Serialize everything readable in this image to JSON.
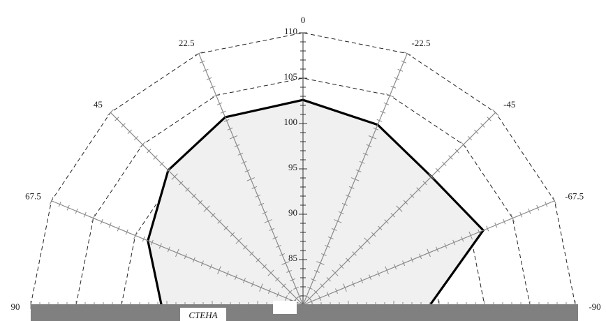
{
  "chart_data": {
    "type": "polar",
    "title": "",
    "angle_unit": "deg",
    "angle_range": [
      -90,
      90
    ],
    "angle_ticks": [
      0,
      -22.5,
      -45,
      -67.5,
      -90,
      22.5,
      45,
      67.5,
      90
    ],
    "radial_range": [
      80,
      110
    ],
    "radial_ticks": [
      80,
      85,
      90,
      95,
      100,
      105,
      110
    ],
    "grid": true,
    "wall_label": "СТЕНА",
    "series": [
      {
        "angles": [
          90,
          67.5,
          45,
          22.5,
          0,
          -22.5,
          -45,
          -67.5,
          -90
        ],
        "values": [
          95.6,
          98.5,
          101.0,
          102.4,
          102.6,
          101.5,
          100.0,
          101.5,
          94.0
        ]
      }
    ]
  }
}
